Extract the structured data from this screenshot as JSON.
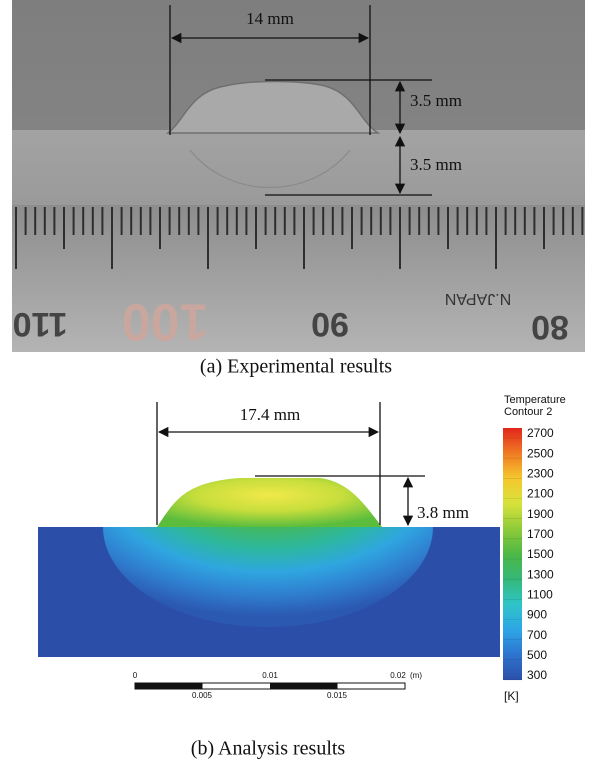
{
  "panel_a": {
    "dimensions": {
      "width": "14 mm",
      "reinforcement_height": "3.5 mm",
      "penetration_depth": "3.5 mm"
    },
    "ruler_labels": [
      "110",
      "100",
      "90",
      "80"
    ],
    "ruler_text": "N.JAPAN",
    "caption": "(a) Experimental results"
  },
  "panel_b": {
    "dimensions": {
      "width": "17.4 mm",
      "reinforcement_height": "3.8 mm"
    },
    "colorbar": {
      "title": "Temperature",
      "subtitle": "Contour 2",
      "ticks": [
        300,
        500,
        700,
        900,
        1100,
        1300,
        1500,
        1700,
        1900,
        2100,
        2300,
        2500,
        2700
      ],
      "unit": "[K]"
    },
    "scale_bar": {
      "top_labels": [
        "0",
        "0.01",
        "0.02"
      ],
      "unit": "(m)",
      "bottom_labels": [
        "0.005",
        "0.015"
      ]
    },
    "caption": "(b) Analysis results"
  }
}
